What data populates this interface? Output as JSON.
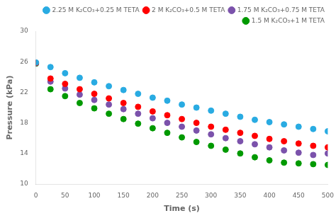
{
  "chart_data": {
    "type": "scatter",
    "xlabel": "Time (s)",
    "ylabel": "Pressure (kPa)",
    "xlim": [
      0,
      500
    ],
    "ylim": [
      10,
      30
    ],
    "xticks": [
      0,
      50,
      100,
      150,
      200,
      250,
      300,
      350,
      400,
      450,
      500
    ],
    "yticks": [
      10,
      14,
      18,
      22,
      26,
      30
    ],
    "grid": false,
    "legend": "upper right",
    "marker": "circle",
    "x": [
      0,
      25,
      50,
      75,
      100,
      125,
      150,
      175,
      200,
      225,
      250,
      275,
      300,
      325,
      350,
      375,
      400,
      425,
      450,
      475,
      500
    ],
    "series": [
      {
        "name": "2.25 M K₂CO₃+0.25 M TETA",
        "color": "#29ABE2",
        "values": [
          25.9,
          25.3,
          24.5,
          23.9,
          23.3,
          22.8,
          22.3,
          21.8,
          21.3,
          20.9,
          20.4,
          20.0,
          19.6,
          19.2,
          18.8,
          18.4,
          18.1,
          17.8,
          17.5,
          17.2,
          16.9
        ]
      },
      {
        "name": "2 M K₂CO₃+0.5 M TETA",
        "color": "#FF0000",
        "values": [
          25.85,
          23.8,
          23.1,
          22.4,
          21.8,
          21.2,
          20.6,
          20.1,
          19.5,
          19.0,
          18.5,
          18.0,
          17.5,
          17.1,
          16.7,
          16.3,
          15.9,
          15.6,
          15.3,
          15.0,
          14.8
        ]
      },
      {
        "name": "1.75 M K₂CO₃+0.75 M TETA",
        "color": "#7B52AB",
        "values": [
          25.8,
          23.4,
          22.5,
          21.7,
          21.0,
          20.4,
          19.8,
          19.2,
          18.6,
          18.0,
          17.5,
          17.0,
          16.5,
          16.0,
          15.6,
          15.2,
          14.8,
          14.4,
          14.1,
          13.8,
          14.0
        ]
      },
      {
        "name": "1.5 M K₂CO₃+1 M TETA",
        "color": "#009900",
        "values": [
          25.75,
          22.4,
          21.5,
          20.6,
          19.9,
          19.2,
          18.5,
          17.9,
          17.3,
          16.7,
          16.1,
          15.5,
          15.0,
          14.5,
          14.0,
          13.5,
          13.1,
          12.8,
          12.7,
          12.6,
          12.5
        ]
      }
    ]
  }
}
